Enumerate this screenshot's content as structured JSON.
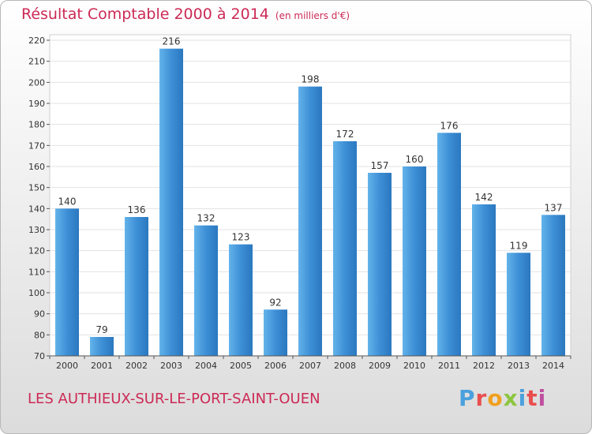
{
  "header": {
    "title": "Résultat Comptable 2000 à 2014",
    "subtitle": "(en milliers d'€)"
  },
  "footer": {
    "location": "LES AUTHIEUX-SUR-LE-PORT-SAINT-OUEN",
    "logo_letters": [
      "P",
      "r",
      "o",
      "x",
      "i",
      "t",
      "i"
    ]
  },
  "colors": {
    "bar": "#3d8fd6",
    "title": "#cc2a55"
  },
  "chart_data": {
    "type": "bar",
    "title": "Résultat Comptable 2000 à 2014",
    "subtitle": "(en milliers d'€)",
    "categories": [
      "2000",
      "2001",
      "2002",
      "2003",
      "2004",
      "2005",
      "2006",
      "2007",
      "2008",
      "2009",
      "2010",
      "2011",
      "2012",
      "2013",
      "2014"
    ],
    "values": [
      140,
      79,
      136,
      216,
      132,
      123,
      92,
      198,
      172,
      157,
      160,
      176,
      142,
      119,
      137
    ],
    "ylim": [
      70,
      220
    ],
    "yticks": [
      70,
      80,
      90,
      100,
      110,
      120,
      130,
      140,
      150,
      160,
      170,
      180,
      190,
      200,
      210,
      220
    ],
    "grid": true,
    "data_labels": true
  }
}
